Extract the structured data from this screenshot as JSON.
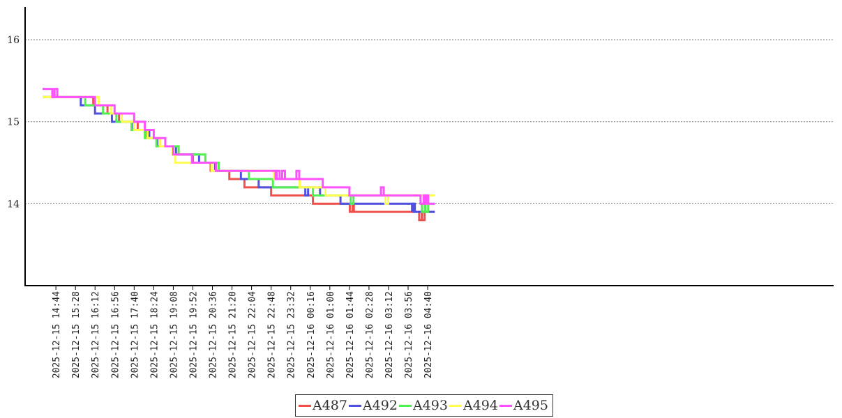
{
  "chart_data": {
    "type": "line",
    "title": "",
    "xlabel": "",
    "ylabel": "",
    "ylim": [
      13,
      16.4
    ],
    "yticks": [
      14,
      15,
      16
    ],
    "grid": "horizontal dotted at y ticks",
    "legend_position": "bottom-center",
    "x_start": "2025-12-15 14:14",
    "x_end": "2025-12-16 04:56",
    "x_step_minutes": 2,
    "x_ticks": [
      "2025-12-15 14:44",
      "2025-12-15 15:28",
      "2025-12-15 16:12",
      "2025-12-15 16:56",
      "2025-12-15 17:40",
      "2025-12-15 18:24",
      "2025-12-15 19:08",
      "2025-12-15 19:52",
      "2025-12-15 20:36",
      "2025-12-15 21:20",
      "2025-12-15 22:04",
      "2025-12-15 22:48",
      "2025-12-15 23:32",
      "2025-12-16 00:16",
      "2025-12-16 01:00",
      "2025-12-16 01:44",
      "2025-12-16 02:28",
      "2025-12-16 03:12",
      "2025-12-16 03:56",
      "2025-12-16 04:40"
    ],
    "series": [
      {
        "name": "A487",
        "color": "#f0504c",
        "steps": [
          [
            "2025-12-15 14:14",
            15.3
          ],
          [
            "2025-12-15 16:08",
            15.2
          ],
          [
            "2025-12-15 16:40",
            15.1
          ],
          [
            "2025-12-15 17:06",
            15.0
          ],
          [
            "2025-12-15 17:48",
            14.9
          ],
          [
            "2025-12-15 18:08",
            14.8
          ],
          [
            "2025-12-15 18:38",
            14.7
          ],
          [
            "2025-12-15 19:20",
            14.6
          ],
          [
            "2025-12-15 19:52",
            14.5
          ],
          [
            "2025-12-15 20:32",
            14.4
          ],
          [
            "2025-12-15 21:14",
            14.3
          ],
          [
            "2025-12-15 21:48",
            14.2
          ],
          [
            "2025-12-15 22:48",
            14.1
          ],
          [
            "2025-12-16 00:22",
            14.0
          ],
          [
            "2025-12-16 01:54",
            13.9
          ]
        ],
        "dips": [
          [
            "2025-12-16 01:48",
            13.9
          ],
          [
            "2025-12-16 04:24",
            13.8
          ],
          [
            "2025-12-16 04:30",
            13.8
          ]
        ]
      },
      {
        "name": "A492",
        "color": "#5050e0",
        "steps": [
          [
            "2025-12-15 14:14",
            15.3
          ],
          [
            "2025-12-15 15:40",
            15.2
          ],
          [
            "2025-12-15 16:12",
            15.1
          ],
          [
            "2025-12-15 16:50",
            15.0
          ],
          [
            "2025-12-15 17:38",
            14.9
          ],
          [
            "2025-12-15 18:14",
            14.8
          ],
          [
            "2025-12-15 18:32",
            14.7
          ],
          [
            "2025-12-15 19:14",
            14.6
          ],
          [
            "2025-12-15 19:50",
            14.6
          ],
          [
            "2025-12-15 20:06",
            14.5
          ],
          [
            "2025-12-15 20:42",
            14.4
          ],
          [
            "2025-12-15 21:40",
            14.3
          ],
          [
            "2025-12-15 22:20",
            14.2
          ],
          [
            "2025-12-15 22:52",
            14.2
          ],
          [
            "2025-12-16 00:38",
            14.1
          ],
          [
            "2025-12-16 01:24",
            14.0
          ],
          [
            "2025-12-16 04:08",
            13.9
          ]
        ],
        "dips": [
          [
            "2025-12-16 00:08",
            14.1
          ],
          [
            "2025-12-16 04:08",
            14.0
          ]
        ]
      },
      {
        "name": "A493",
        "color": "#50f050",
        "steps": [
          [
            "2025-12-15 14:14",
            15.3
          ],
          [
            "2025-12-15 15:50",
            15.2
          ],
          [
            "2025-12-15 16:30",
            15.1
          ],
          [
            "2025-12-15 17:00",
            15.0
          ],
          [
            "2025-12-15 17:34",
            14.9
          ],
          [
            "2025-12-15 18:04",
            14.8
          ],
          [
            "2025-12-15 18:30",
            14.7
          ],
          [
            "2025-12-15 19:20",
            14.6
          ],
          [
            "2025-12-15 20:20",
            14.5
          ],
          [
            "2025-12-15 20:50",
            14.4
          ],
          [
            "2025-12-15 21:58",
            14.3
          ],
          [
            "2025-12-15 22:52",
            14.2
          ],
          [
            "2025-12-16 00:22",
            14.1
          ],
          [
            "2025-12-16 04:24",
            14.0
          ]
        ],
        "dips": [
          [
            "2025-12-16 01:50",
            14.0
          ],
          [
            "2025-12-16 04:30",
            13.9
          ],
          [
            "2025-12-16 04:38",
            13.9
          ]
        ]
      },
      {
        "name": "A494",
        "color": "#ffff50",
        "steps": [
          [
            "2025-12-15 14:14",
            15.3
          ],
          [
            "2025-12-15 16:20",
            15.2
          ],
          [
            "2025-12-15 16:48",
            15.1
          ],
          [
            "2025-12-15 17:12",
            15.0
          ],
          [
            "2025-12-15 17:40",
            14.9
          ],
          [
            "2025-12-15 18:10",
            14.8
          ],
          [
            "2025-12-15 18:38",
            14.7
          ],
          [
            "2025-12-15 19:06",
            14.6
          ],
          [
            "2025-12-15 19:12",
            14.5
          ],
          [
            "2025-12-15 19:50",
            14.5
          ],
          [
            "2025-12-15 20:34",
            14.4
          ],
          [
            "2025-12-15 22:54",
            14.3
          ],
          [
            "2025-12-15 23:52",
            14.2
          ],
          [
            "2025-12-16 00:50",
            14.1
          ],
          [
            "2025-12-16 01:44",
            14.1
          ]
        ],
        "dips": [
          [
            "2025-12-16 00:58",
            14.1
          ],
          [
            "2025-12-16 02:24",
            14.1
          ],
          [
            "2025-12-16 03:08",
            14.0
          ]
        ]
      },
      {
        "name": "A495",
        "color": "#ff50ff",
        "steps": [
          [
            "2025-12-15 14:14",
            15.4
          ],
          [
            "2025-12-15 14:36",
            15.3
          ],
          [
            "2025-12-15 16:12",
            15.2
          ],
          [
            "2025-12-15 16:56",
            15.1
          ],
          [
            "2025-12-15 17:40",
            15.0
          ],
          [
            "2025-12-15 18:04",
            14.9
          ],
          [
            "2025-12-15 18:24",
            14.8
          ],
          [
            "2025-12-15 18:50",
            14.7
          ],
          [
            "2025-12-15 19:08",
            14.6
          ],
          [
            "2025-12-15 19:50",
            14.5
          ],
          [
            "2025-12-15 20:44",
            14.4
          ],
          [
            "2025-12-15 22:04",
            14.4
          ],
          [
            "2025-12-15 22:58",
            14.3
          ],
          [
            "2025-12-16 00:44",
            14.2
          ],
          [
            "2025-12-16 01:44",
            14.1
          ],
          [
            "2025-12-16 04:24",
            14.0
          ]
        ],
        "dips": [
          [
            "2025-12-15 14:44",
            15.4
          ],
          [
            "2025-12-15 16:06",
            15.3
          ],
          [
            "2025-12-15 19:54",
            14.5
          ],
          [
            "2025-12-15 23:04",
            14.4
          ],
          [
            "2025-12-15 23:16",
            14.4
          ],
          [
            "2025-12-15 23:48",
            14.4
          ],
          [
            "2025-12-16 00:28",
            14.3
          ],
          [
            "2025-12-16 02:58",
            14.2
          ],
          [
            "2025-12-16 04:14",
            14.1
          ],
          [
            "2025-12-16 04:34",
            14.1
          ],
          [
            "2025-12-16 04:38",
            14.1
          ]
        ]
      }
    ]
  }
}
